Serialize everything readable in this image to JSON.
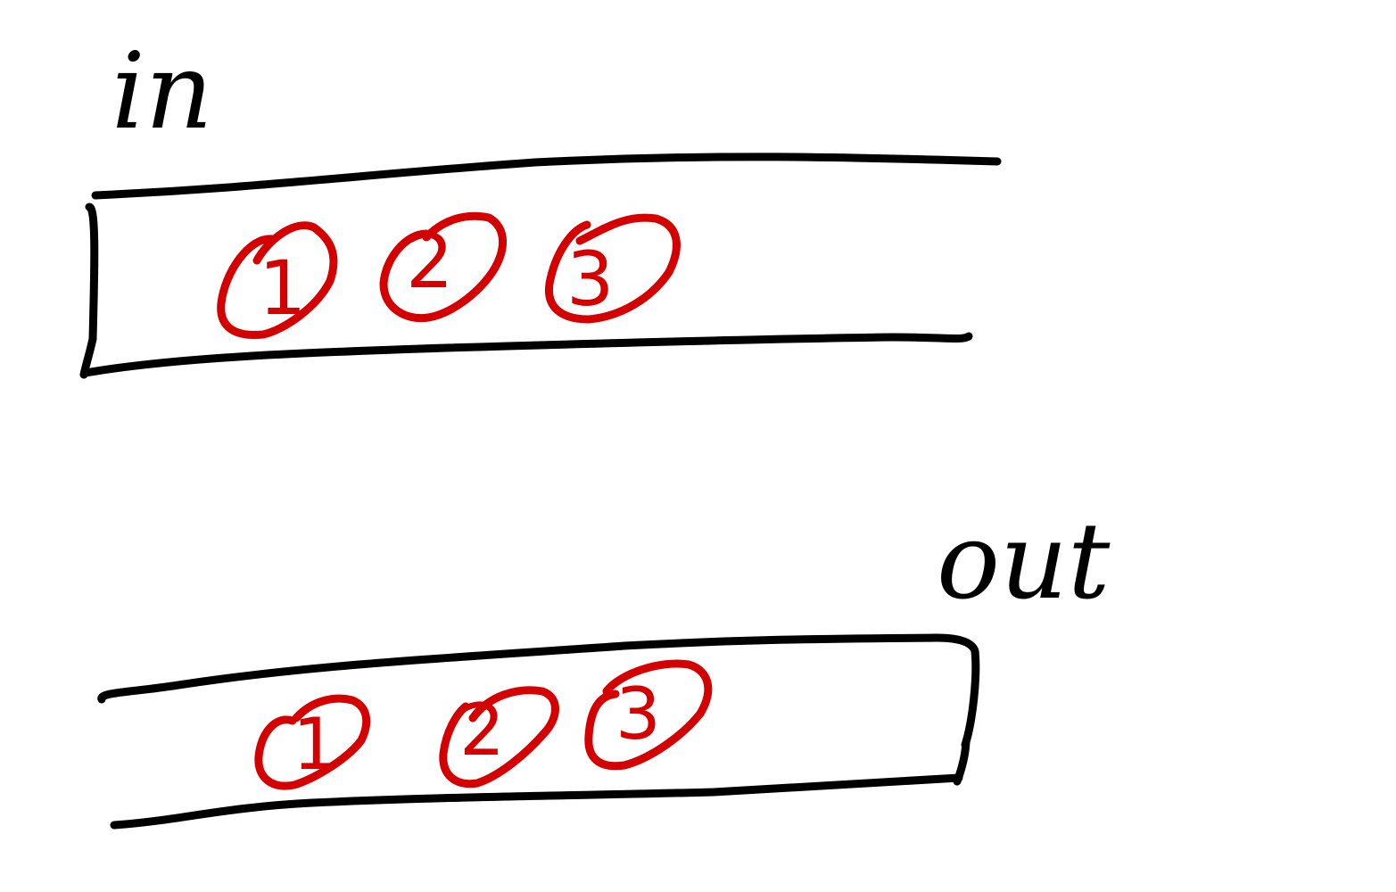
{
  "colors": {
    "background": "#ffffff",
    "outline": "#000000",
    "item": "#d40000"
  },
  "input_queue": {
    "label": "in",
    "items": [
      "1",
      "2",
      "3"
    ]
  },
  "output_queue": {
    "label": "out",
    "items": [
      "1",
      "2",
      "3"
    ]
  }
}
